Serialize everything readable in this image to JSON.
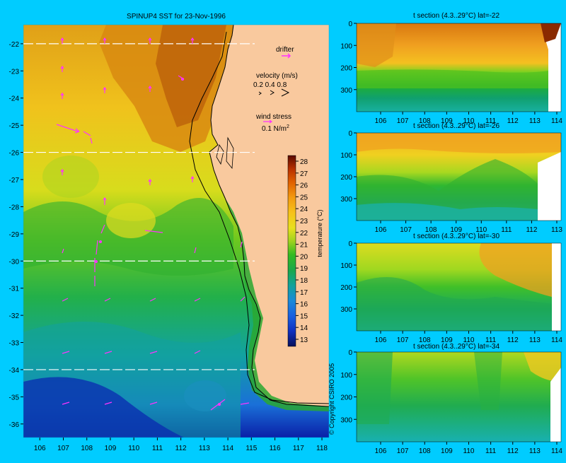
{
  "colors": {
    "background": "#00ccff",
    "land": "#f9c99e",
    "arrow": "#ff33ff",
    "dashline": "#ffffff",
    "coast": "#000000"
  },
  "main_map": {
    "title": "SPINUP4 SST for 23-Nov-1996",
    "lat_ticks": [
      "-22",
      "-23",
      "-24",
      "-25",
      "-26",
      "-27",
      "-28",
      "-29",
      "-30",
      "-31",
      "-32",
      "-33",
      "-34",
      "-35",
      "-36"
    ],
    "lon_ticks": [
      "106",
      "107",
      "108",
      "109",
      "110",
      "111",
      "112",
      "113",
      "114",
      "115",
      "116",
      "117",
      "118"
    ],
    "section_lats": [
      -22,
      -26,
      -30,
      -34
    ],
    "drifter_label": "drifter",
    "velocity_label": "velocity (m/s)",
    "velocity_values": "0.2 0.4 0.8",
    "wind_label": "wind stress",
    "wind_value": "0.1 N/m",
    "wind_exp": "2",
    "copyright": "© Copyright CSIRO 2005"
  },
  "colorbar": {
    "label": "temperature (°C)",
    "ticks": [
      "28",
      "27",
      "26",
      "25",
      "24",
      "23",
      "22",
      "21",
      "20",
      "19",
      "18",
      "17",
      "16",
      "15",
      "14",
      "13"
    ],
    "stops": [
      "#5a0a00",
      "#b83000",
      "#e06000",
      "#f39a10",
      "#f7c21a",
      "#e8e01e",
      "#9ed21f",
      "#33bb22",
      "#1aa84a",
      "#12a29a",
      "#1a8ad8",
      "#1a60e0",
      "#1030c0",
      "#0a1890",
      "#08105a"
    ]
  },
  "sections": [
    {
      "title": "t section (4.3..29°C) lat=-22",
      "depth_ticks": [
        "0",
        "100",
        "200",
        "300"
      ],
      "lon_ticks": [
        "106",
        "107",
        "108",
        "109",
        "110",
        "111",
        "112",
        "113",
        "114"
      ]
    },
    {
      "title": "t section (4.3..29°C) lat=-26",
      "depth_ticks": [
        "0",
        "100",
        "200",
        "300"
      ],
      "lon_ticks": [
        "106",
        "107",
        "108",
        "109",
        "110",
        "111",
        "112",
        "113"
      ]
    },
    {
      "title": "t section (4.3..29°C) lat=-30",
      "depth_ticks": [
        "0",
        "100",
        "200",
        "300"
      ],
      "lon_ticks": [
        "106",
        "107",
        "108",
        "109",
        "110",
        "111",
        "112",
        "113",
        "114"
      ]
    },
    {
      "title": "t section (4.3..29°C) lat=-34",
      "depth_ticks": [
        "0",
        "100",
        "200",
        "300"
      ],
      "lon_ticks": [
        "106",
        "107",
        "108",
        "109",
        "110",
        "111",
        "112",
        "113",
        "114"
      ]
    }
  ]
}
